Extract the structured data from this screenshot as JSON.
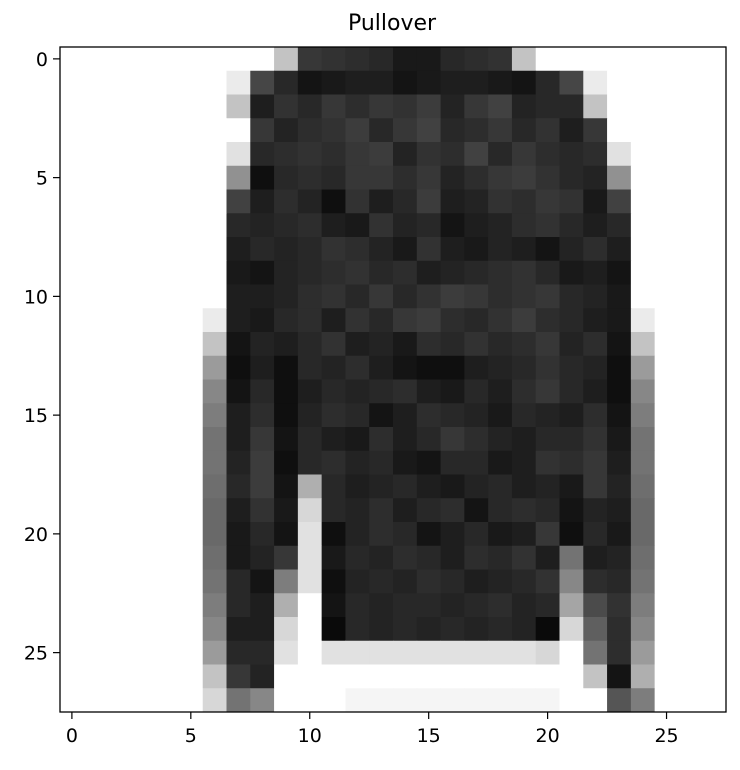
{
  "chart_data": {
    "type": "heatmap",
    "title": "Pullover",
    "xlabel": "",
    "ylabel": "",
    "colormap": "gray_r",
    "value_range": [
      0,
      255
    ],
    "xlim": [
      -0.5,
      27.5
    ],
    "ylim": [
      27.5,
      -0.5
    ],
    "x_ticks": [
      0,
      5,
      10,
      15,
      20,
      25
    ],
    "y_ticks": [
      0,
      5,
      10,
      15,
      20,
      25
    ],
    "x_tick_labels": [
      "0",
      "5",
      "10",
      "15",
      "20",
      "25"
    ],
    "y_tick_labels": [
      "0",
      "5",
      "10",
      "15",
      "20",
      "25"
    ],
    "image_size": [
      28,
      28
    ],
    "pixels": [
      [
        0,
        0,
        0,
        0,
        0,
        0,
        0,
        0,
        0,
        60,
        200,
        205,
        210,
        215,
        230,
        230,
        215,
        210,
        205,
        60,
        0,
        0,
        0,
        0,
        0,
        0,
        0,
        0
      ],
      [
        0,
        0,
        0,
        0,
        0,
        0,
        0,
        20,
        185,
        215,
        235,
        230,
        225,
        225,
        235,
        230,
        225,
        225,
        230,
        235,
        215,
        185,
        20,
        0,
        0,
        0,
        0,
        0
      ],
      [
        0,
        0,
        0,
        0,
        0,
        0,
        0,
        60,
        225,
        205,
        215,
        200,
        210,
        200,
        205,
        195,
        220,
        200,
        190,
        220,
        215,
        215,
        60,
        0,
        0,
        0,
        0,
        0
      ],
      [
        0,
        0,
        0,
        0,
        0,
        0,
        0,
        0,
        200,
        220,
        210,
        205,
        195,
        215,
        200,
        190,
        215,
        210,
        200,
        215,
        205,
        225,
        200,
        0,
        0,
        0,
        0,
        0
      ],
      [
        0,
        0,
        0,
        0,
        0,
        0,
        0,
        30,
        215,
        210,
        205,
        210,
        200,
        195,
        220,
        205,
        210,
        190,
        215,
        200,
        210,
        215,
        210,
        30,
        0,
        0,
        0,
        0
      ],
      [
        0,
        0,
        0,
        0,
        0,
        0,
        0,
        110,
        240,
        215,
        210,
        215,
        200,
        200,
        210,
        200,
        220,
        210,
        200,
        195,
        205,
        215,
        220,
        110,
        0,
        0,
        0,
        0
      ],
      [
        0,
        0,
        0,
        0,
        0,
        0,
        0,
        190,
        225,
        210,
        220,
        240,
        205,
        225,
        215,
        195,
        225,
        220,
        205,
        210,
        200,
        205,
        230,
        190,
        0,
        0,
        0,
        0
      ],
      [
        0,
        0,
        0,
        0,
        0,
        0,
        0,
        215,
        220,
        215,
        210,
        225,
        230,
        205,
        220,
        215,
        235,
        225,
        220,
        210,
        205,
        215,
        225,
        215,
        0,
        0,
        0,
        0
      ],
      [
        0,
        0,
        0,
        0,
        0,
        0,
        0,
        225,
        215,
        220,
        215,
        205,
        210,
        220,
        230,
        205,
        225,
        230,
        220,
        225,
        235,
        220,
        210,
        225,
        0,
        0,
        0,
        0
      ],
      [
        0,
        0,
        0,
        0,
        0,
        0,
        0,
        230,
        235,
        220,
        215,
        210,
        205,
        215,
        210,
        225,
        220,
        215,
        210,
        205,
        215,
        230,
        225,
        235,
        0,
        0,
        0,
        0
      ],
      [
        0,
        0,
        0,
        0,
        0,
        0,
        0,
        225,
        225,
        220,
        210,
        205,
        215,
        200,
        215,
        205,
        195,
        200,
        210,
        205,
        200,
        215,
        220,
        230,
        0,
        0,
        0,
        0
      ],
      [
        0,
        0,
        0,
        0,
        0,
        0,
        20,
        225,
        230,
        215,
        210,
        225,
        205,
        215,
        200,
        195,
        210,
        215,
        205,
        195,
        210,
        215,
        225,
        230,
        20,
        0,
        0,
        0
      ],
      [
        0,
        0,
        0,
        0,
        0,
        0,
        60,
        235,
        220,
        225,
        215,
        205,
        225,
        220,
        230,
        210,
        215,
        205,
        215,
        210,
        200,
        220,
        210,
        235,
        60,
        0,
        0,
        0
      ],
      [
        0,
        0,
        0,
        0,
        0,
        0,
        100,
        240,
        225,
        240,
        215,
        220,
        210,
        225,
        235,
        240,
        240,
        225,
        220,
        215,
        205,
        215,
        220,
        240,
        100,
        0,
        0,
        0
      ],
      [
        0,
        0,
        0,
        0,
        0,
        0,
        120,
        235,
        215,
        240,
        225,
        215,
        220,
        215,
        210,
        225,
        230,
        215,
        225,
        210,
        200,
        215,
        225,
        240,
        120,
        0,
        0,
        0
      ],
      [
        0,
        0,
        0,
        0,
        0,
        0,
        130,
        225,
        210,
        240,
        220,
        210,
        215,
        235,
        225,
        210,
        215,
        220,
        230,
        215,
        220,
        225,
        210,
        235,
        130,
        0,
        0,
        0
      ],
      [
        0,
        0,
        0,
        0,
        0,
        0,
        140,
        225,
        200,
        235,
        215,
        225,
        230,
        210,
        225,
        215,
        200,
        210,
        220,
        225,
        215,
        215,
        205,
        230,
        140,
        0,
        0,
        0
      ],
      [
        0,
        0,
        0,
        0,
        0,
        0,
        140,
        220,
        195,
        240,
        215,
        210,
        220,
        215,
        230,
        235,
        215,
        215,
        230,
        225,
        205,
        210,
        200,
        225,
        140,
        0,
        0,
        0
      ],
      [
        0,
        0,
        0,
        0,
        0,
        0,
        145,
        215,
        195,
        235,
        80,
        215,
        225,
        220,
        215,
        225,
        230,
        220,
        215,
        225,
        220,
        230,
        200,
        220,
        145,
        0,
        0,
        0
      ],
      [
        0,
        0,
        0,
        0,
        0,
        0,
        150,
        225,
        205,
        230,
        40,
        215,
        220,
        210,
        225,
        215,
        210,
        235,
        215,
        210,
        215,
        235,
        220,
        225,
        150,
        0,
        0,
        0
      ],
      [
        0,
        0,
        0,
        0,
        0,
        0,
        150,
        230,
        215,
        235,
        30,
        240,
        220,
        210,
        215,
        235,
        225,
        215,
        230,
        225,
        200,
        240,
        215,
        230,
        150,
        0,
        0,
        0
      ],
      [
        0,
        0,
        0,
        0,
        0,
        0,
        145,
        230,
        220,
        200,
        30,
        230,
        215,
        220,
        210,
        215,
        225,
        210,
        215,
        205,
        225,
        140,
        225,
        220,
        145,
        0,
        0,
        0
      ],
      [
        0,
        0,
        0,
        0,
        0,
        0,
        140,
        215,
        235,
        130,
        30,
        240,
        220,
        215,
        220,
        210,
        215,
        225,
        220,
        215,
        205,
        120,
        210,
        215,
        140,
        0,
        0,
        0
      ],
      [
        0,
        0,
        0,
        0,
        0,
        0,
        130,
        215,
        225,
        80,
        0,
        235,
        215,
        220,
        215,
        215,
        220,
        215,
        210,
        220,
        215,
        90,
        180,
        205,
        130,
        0,
        0,
        0
      ],
      [
        0,
        0,
        0,
        0,
        0,
        0,
        120,
        225,
        225,
        40,
        0,
        245,
        215,
        220,
        215,
        220,
        215,
        220,
        215,
        220,
        245,
        40,
        160,
        210,
        120,
        0,
        0,
        0
      ],
      [
        0,
        0,
        0,
        0,
        0,
        0,
        100,
        215,
        215,
        30,
        0,
        30,
        30,
        30,
        30,
        30,
        30,
        30,
        30,
        30,
        40,
        0,
        140,
        210,
        100,
        0,
        0,
        0
      ],
      [
        0,
        0,
        0,
        0,
        0,
        0,
        60,
        200,
        220,
        0,
        0,
        0,
        0,
        0,
        0,
        0,
        0,
        0,
        0,
        0,
        0,
        0,
        60,
        235,
        80,
        0,
        0,
        0
      ],
      [
        0,
        0,
        0,
        0,
        0,
        0,
        40,
        140,
        120,
        0,
        0,
        0,
        10,
        10,
        10,
        10,
        10,
        10,
        10,
        10,
        10,
        0,
        0,
        170,
        130,
        0,
        0,
        0
      ]
    ]
  }
}
